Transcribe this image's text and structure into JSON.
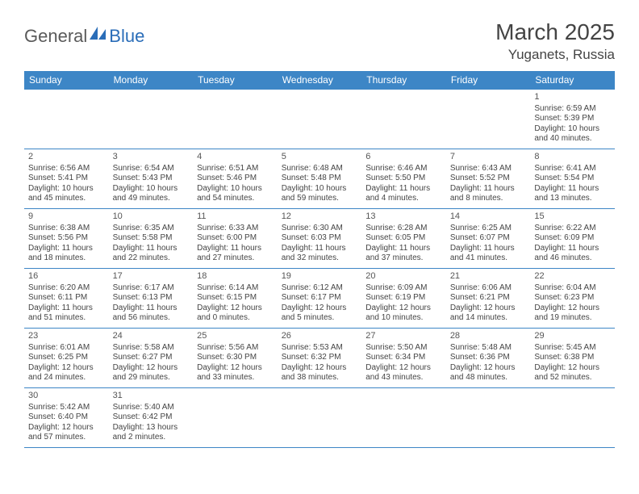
{
  "logo": {
    "text1": "General",
    "text2": "Blue",
    "icon_color": "#2a6db8"
  },
  "header": {
    "month": "March 2025",
    "location": "Yuganets, Russia"
  },
  "colors": {
    "header_bg": "#3d86c6",
    "border": "#3d86c6",
    "text": "#444444"
  },
  "weekdays": [
    "Sunday",
    "Monday",
    "Tuesday",
    "Wednesday",
    "Thursday",
    "Friday",
    "Saturday"
  ],
  "weeks": [
    [
      null,
      null,
      null,
      null,
      null,
      null,
      {
        "day": "1",
        "sunrise": "Sunrise: 6:59 AM",
        "sunset": "Sunset: 5:39 PM",
        "daylight1": "Daylight: 10 hours",
        "daylight2": "and 40 minutes."
      }
    ],
    [
      {
        "day": "2",
        "sunrise": "Sunrise: 6:56 AM",
        "sunset": "Sunset: 5:41 PM",
        "daylight1": "Daylight: 10 hours",
        "daylight2": "and 45 minutes."
      },
      {
        "day": "3",
        "sunrise": "Sunrise: 6:54 AM",
        "sunset": "Sunset: 5:43 PM",
        "daylight1": "Daylight: 10 hours",
        "daylight2": "and 49 minutes."
      },
      {
        "day": "4",
        "sunrise": "Sunrise: 6:51 AM",
        "sunset": "Sunset: 5:46 PM",
        "daylight1": "Daylight: 10 hours",
        "daylight2": "and 54 minutes."
      },
      {
        "day": "5",
        "sunrise": "Sunrise: 6:48 AM",
        "sunset": "Sunset: 5:48 PM",
        "daylight1": "Daylight: 10 hours",
        "daylight2": "and 59 minutes."
      },
      {
        "day": "6",
        "sunrise": "Sunrise: 6:46 AM",
        "sunset": "Sunset: 5:50 PM",
        "daylight1": "Daylight: 11 hours",
        "daylight2": "and 4 minutes."
      },
      {
        "day": "7",
        "sunrise": "Sunrise: 6:43 AM",
        "sunset": "Sunset: 5:52 PM",
        "daylight1": "Daylight: 11 hours",
        "daylight2": "and 8 minutes."
      },
      {
        "day": "8",
        "sunrise": "Sunrise: 6:41 AM",
        "sunset": "Sunset: 5:54 PM",
        "daylight1": "Daylight: 11 hours",
        "daylight2": "and 13 minutes."
      }
    ],
    [
      {
        "day": "9",
        "sunrise": "Sunrise: 6:38 AM",
        "sunset": "Sunset: 5:56 PM",
        "daylight1": "Daylight: 11 hours",
        "daylight2": "and 18 minutes."
      },
      {
        "day": "10",
        "sunrise": "Sunrise: 6:35 AM",
        "sunset": "Sunset: 5:58 PM",
        "daylight1": "Daylight: 11 hours",
        "daylight2": "and 22 minutes."
      },
      {
        "day": "11",
        "sunrise": "Sunrise: 6:33 AM",
        "sunset": "Sunset: 6:00 PM",
        "daylight1": "Daylight: 11 hours",
        "daylight2": "and 27 minutes."
      },
      {
        "day": "12",
        "sunrise": "Sunrise: 6:30 AM",
        "sunset": "Sunset: 6:03 PM",
        "daylight1": "Daylight: 11 hours",
        "daylight2": "and 32 minutes."
      },
      {
        "day": "13",
        "sunrise": "Sunrise: 6:28 AM",
        "sunset": "Sunset: 6:05 PM",
        "daylight1": "Daylight: 11 hours",
        "daylight2": "and 37 minutes."
      },
      {
        "day": "14",
        "sunrise": "Sunrise: 6:25 AM",
        "sunset": "Sunset: 6:07 PM",
        "daylight1": "Daylight: 11 hours",
        "daylight2": "and 41 minutes."
      },
      {
        "day": "15",
        "sunrise": "Sunrise: 6:22 AM",
        "sunset": "Sunset: 6:09 PM",
        "daylight1": "Daylight: 11 hours",
        "daylight2": "and 46 minutes."
      }
    ],
    [
      {
        "day": "16",
        "sunrise": "Sunrise: 6:20 AM",
        "sunset": "Sunset: 6:11 PM",
        "daylight1": "Daylight: 11 hours",
        "daylight2": "and 51 minutes."
      },
      {
        "day": "17",
        "sunrise": "Sunrise: 6:17 AM",
        "sunset": "Sunset: 6:13 PM",
        "daylight1": "Daylight: 11 hours",
        "daylight2": "and 56 minutes."
      },
      {
        "day": "18",
        "sunrise": "Sunrise: 6:14 AM",
        "sunset": "Sunset: 6:15 PM",
        "daylight1": "Daylight: 12 hours",
        "daylight2": "and 0 minutes."
      },
      {
        "day": "19",
        "sunrise": "Sunrise: 6:12 AM",
        "sunset": "Sunset: 6:17 PM",
        "daylight1": "Daylight: 12 hours",
        "daylight2": "and 5 minutes."
      },
      {
        "day": "20",
        "sunrise": "Sunrise: 6:09 AM",
        "sunset": "Sunset: 6:19 PM",
        "daylight1": "Daylight: 12 hours",
        "daylight2": "and 10 minutes."
      },
      {
        "day": "21",
        "sunrise": "Sunrise: 6:06 AM",
        "sunset": "Sunset: 6:21 PM",
        "daylight1": "Daylight: 12 hours",
        "daylight2": "and 14 minutes."
      },
      {
        "day": "22",
        "sunrise": "Sunrise: 6:04 AM",
        "sunset": "Sunset: 6:23 PM",
        "daylight1": "Daylight: 12 hours",
        "daylight2": "and 19 minutes."
      }
    ],
    [
      {
        "day": "23",
        "sunrise": "Sunrise: 6:01 AM",
        "sunset": "Sunset: 6:25 PM",
        "daylight1": "Daylight: 12 hours",
        "daylight2": "and 24 minutes."
      },
      {
        "day": "24",
        "sunrise": "Sunrise: 5:58 AM",
        "sunset": "Sunset: 6:27 PM",
        "daylight1": "Daylight: 12 hours",
        "daylight2": "and 29 minutes."
      },
      {
        "day": "25",
        "sunrise": "Sunrise: 5:56 AM",
        "sunset": "Sunset: 6:30 PM",
        "daylight1": "Daylight: 12 hours",
        "daylight2": "and 33 minutes."
      },
      {
        "day": "26",
        "sunrise": "Sunrise: 5:53 AM",
        "sunset": "Sunset: 6:32 PM",
        "daylight1": "Daylight: 12 hours",
        "daylight2": "and 38 minutes."
      },
      {
        "day": "27",
        "sunrise": "Sunrise: 5:50 AM",
        "sunset": "Sunset: 6:34 PM",
        "daylight1": "Daylight: 12 hours",
        "daylight2": "and 43 minutes."
      },
      {
        "day": "28",
        "sunrise": "Sunrise: 5:48 AM",
        "sunset": "Sunset: 6:36 PM",
        "daylight1": "Daylight: 12 hours",
        "daylight2": "and 48 minutes."
      },
      {
        "day": "29",
        "sunrise": "Sunrise: 5:45 AM",
        "sunset": "Sunset: 6:38 PM",
        "daylight1": "Daylight: 12 hours",
        "daylight2": "and 52 minutes."
      }
    ],
    [
      {
        "day": "30",
        "sunrise": "Sunrise: 5:42 AM",
        "sunset": "Sunset: 6:40 PM",
        "daylight1": "Daylight: 12 hours",
        "daylight2": "and 57 minutes."
      },
      {
        "day": "31",
        "sunrise": "Sunrise: 5:40 AM",
        "sunset": "Sunset: 6:42 PM",
        "daylight1": "Daylight: 13 hours",
        "daylight2": "and 2 minutes."
      },
      null,
      null,
      null,
      null,
      null
    ]
  ]
}
